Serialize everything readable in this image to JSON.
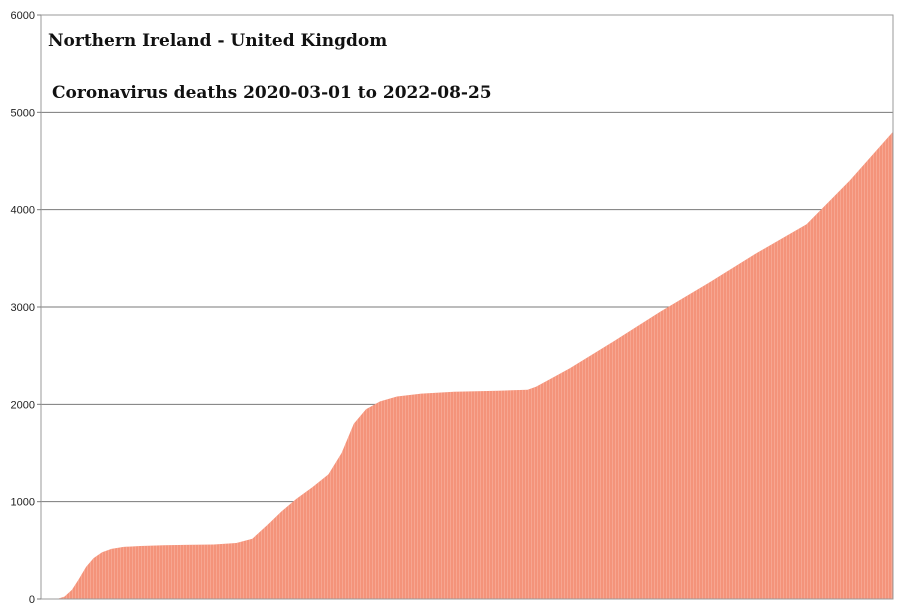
{
  "chart_data": {
    "type": "area",
    "title": "Northern Ireland - United Kingdom",
    "subtitle": "Coronavirus deaths 2020-03-01 to 2022-08-25",
    "xlabel": "",
    "ylabel": "",
    "x_start": "2020-03-01",
    "x_end": "2022-08-25",
    "ylim": [
      0,
      6000
    ],
    "yticks": [
      0,
      1000,
      2000,
      3000,
      4000,
      5000,
      6000
    ],
    "ytick_labels": [
      "0",
      "1000",
      "2000",
      "3000",
      "4000",
      "5000",
      "6000"
    ],
    "grid": true,
    "legend": "none",
    "series": [
      {
        "color": "#f4937a",
        "points": [
          [
            "2020-03-01",
            0
          ],
          [
            "2020-03-18",
            0
          ],
          [
            "2020-03-26",
            25
          ],
          [
            "2020-04-03",
            95
          ],
          [
            "2020-04-10",
            200
          ],
          [
            "2020-04-18",
            330
          ],
          [
            "2020-04-26",
            420
          ],
          [
            "2020-05-05",
            480
          ],
          [
            "2020-05-15",
            515
          ],
          [
            "2020-05-28",
            535
          ],
          [
            "2020-06-15",
            545
          ],
          [
            "2020-07-10",
            552
          ],
          [
            "2020-08-01",
            556
          ],
          [
            "2020-09-01",
            560
          ],
          [
            "2020-09-25",
            575
          ],
          [
            "2020-10-12",
            620
          ],
          [
            "2020-10-28",
            760
          ],
          [
            "2020-11-12",
            900
          ],
          [
            "2020-11-28",
            1030
          ],
          [
            "2020-12-15",
            1150
          ],
          [
            "2021-01-01",
            1280
          ],
          [
            "2021-01-15",
            1500
          ],
          [
            "2021-01-28",
            1800
          ],
          [
            "2021-02-10",
            1950
          ],
          [
            "2021-02-25",
            2030
          ],
          [
            "2021-03-15",
            2080
          ],
          [
            "2021-04-10",
            2110
          ],
          [
            "2021-05-15",
            2130
          ],
          [
            "2021-07-01",
            2140
          ],
          [
            "2021-08-01",
            2150
          ],
          [
            "2021-08-10",
            2180
          ],
          [
            "2021-09-15",
            2370
          ],
          [
            "2021-11-01",
            2650
          ],
          [
            "2021-12-20",
            2950
          ],
          [
            "2022-02-10",
            3250
          ],
          [
            "2022-04-01",
            3550
          ],
          [
            "2022-05-25",
            3850
          ],
          [
            "2022-07-10",
            4300
          ],
          [
            "2022-08-25",
            4800
          ]
        ]
      }
    ]
  }
}
